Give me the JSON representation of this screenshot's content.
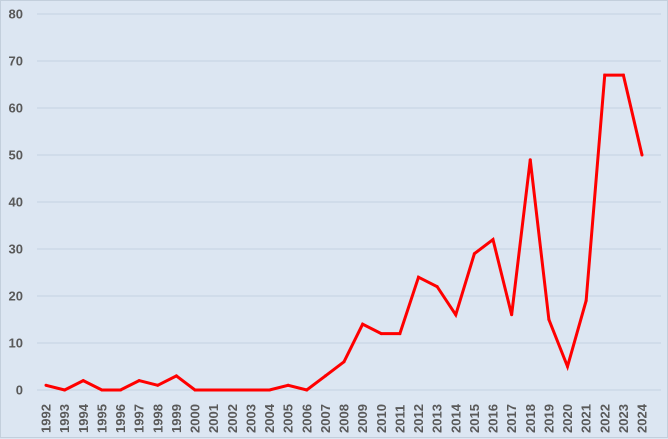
{
  "chart_data": {
    "type": "line",
    "title": "",
    "xlabel": "",
    "ylabel": "",
    "x": [
      "1992",
      "1993",
      "1994",
      "1995",
      "1996",
      "1997",
      "1998",
      "1999",
      "2000",
      "2001",
      "2002",
      "2003",
      "2004",
      "2005",
      "2006",
      "2007",
      "2008",
      "2009",
      "2010",
      "2011",
      "2012",
      "2013",
      "2014",
      "2015",
      "2016",
      "2017",
      "2018",
      "2019",
      "2020",
      "2021",
      "2022",
      "2023",
      "2024"
    ],
    "series": [
      {
        "values": [
          1,
          0,
          2,
          0,
          0,
          2,
          1,
          3,
          0,
          0,
          0,
          0,
          0,
          1,
          0,
          3,
          6,
          14,
          12,
          12,
          24,
          22,
          16,
          29,
          32,
          16,
          49,
          15,
          5,
          19,
          67,
          67,
          50
        ],
        "color": "#ff0000"
      }
    ],
    "ylim": [
      0,
      80
    ],
    "yticks": [
      0,
      10,
      20,
      30,
      40,
      50,
      60,
      70,
      80
    ],
    "grid": true,
    "legend": "none"
  }
}
